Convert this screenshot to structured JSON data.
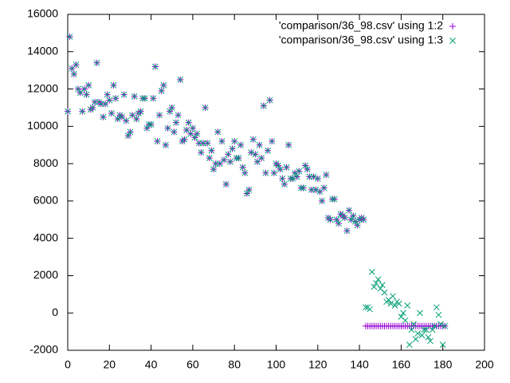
{
  "chart_data": {
    "type": "scatter",
    "x": [
      0,
      1,
      2,
      3,
      4,
      5,
      6,
      7,
      8,
      9,
      10,
      11,
      12,
      13,
      14,
      15,
      16,
      17,
      18,
      19,
      20,
      21,
      22,
      23,
      24,
      25,
      26,
      27,
      28,
      29,
      30,
      31,
      32,
      33,
      34,
      35,
      36,
      37,
      38,
      39,
      40,
      41,
      42,
      43,
      44,
      45,
      46,
      47,
      48,
      49,
      50,
      51,
      52,
      53,
      54,
      55,
      56,
      57,
      58,
      59,
      60,
      61,
      62,
      63,
      64,
      65,
      66,
      67,
      68,
      69,
      70,
      71,
      72,
      73,
      74,
      75,
      76,
      77,
      78,
      79,
      80,
      81,
      82,
      83,
      84,
      85,
      86,
      87,
      88,
      89,
      90,
      91,
      92,
      93,
      94,
      95,
      96,
      97,
      98,
      99,
      100,
      101,
      102,
      103,
      104,
      105,
      106,
      107,
      108,
      109,
      110,
      111,
      112,
      113,
      114,
      115,
      116,
      117,
      118,
      119,
      120,
      121,
      122,
      123,
      124,
      125,
      126,
      127,
      128,
      129,
      130,
      131,
      132,
      133,
      134,
      135,
      136,
      137,
      138,
      139,
      140,
      141,
      142,
      143,
      144,
      145,
      146,
      147,
      148,
      149,
      150,
      151,
      152,
      153,
      154,
      155,
      156,
      157,
      158,
      159,
      160,
      161,
      162,
      163,
      164,
      165,
      166,
      167,
      168,
      169,
      170,
      171,
      172,
      173,
      174,
      175,
      176,
      177,
      178,
      179,
      180,
      181
    ],
    "series": [
      {
        "name": "'comparison/36_98.csv' using 1:2",
        "color": "#9400d3",
        "marker": "plus",
        "values": [
          10800,
          14800,
          13100,
          12800,
          13300,
          12000,
          11800,
          10800,
          12000,
          11700,
          12200,
          10900,
          11000,
          11300,
          13400,
          11300,
          11200,
          10500,
          11200,
          11700,
          11400,
          10700,
          12200,
          11500,
          10400,
          10600,
          10500,
          11700,
          10300,
          9500,
          9700,
          10600,
          11600,
          10400,
          10700,
          10800,
          11500,
          11500,
          9900,
          10100,
          10100,
          11500,
          13200,
          9200,
          10600,
          11900,
          12200,
          9000,
          9900,
          10800,
          11000,
          9700,
          10200,
          10600,
          12500,
          9200,
          9300,
          9800,
          10200,
          9600,
          9900,
          9400,
          9600,
          9100,
          8600,
          9100,
          11000,
          9100,
          8300,
          8700,
          7700,
          8000,
          9700,
          8000,
          9200,
          8200,
          6900,
          8500,
          8100,
          8800,
          9200,
          8300,
          8300,
          9000,
          7800,
          7500,
          6400,
          6600,
          8600,
          9300,
          8500,
          8100,
          9000,
          8300,
          11100,
          7500,
          8700,
          11400,
          9200,
          7500,
          8000,
          7900,
          7700,
          7200,
          6900,
          7800,
          9000,
          7200,
          7200,
          7500,
          7300,
          7600,
          6700,
          6700,
          7900,
          7700,
          7300,
          6600,
          7300,
          6600,
          7200,
          6500,
          6000,
          6700,
          7400,
          5100,
          5000,
          6100,
          6100,
          5000,
          4800,
          5300,
          5200,
          5100,
          4400,
          5500,
          5000,
          5200,
          4900,
          4700,
          5000,
          5100,
          5000,
          -700,
          -700,
          -700,
          -700,
          -700,
          -700,
          -700,
          -700,
          -700,
          -700,
          -700,
          -700,
          -700,
          -700,
          -700,
          -700,
          -700,
          -700,
          -700,
          -700,
          -700,
          -700,
          -700,
          -700,
          -700,
          -700,
          -700,
          -700,
          -700,
          -700,
          -700,
          -700,
          -700,
          -700,
          -700,
          -700,
          -700,
          -700,
          -700
        ]
      },
      {
        "name": "'comparison/36_98.csv' using 1:3",
        "color": "#009e73",
        "marker": "cross",
        "values": [
          10800,
          14800,
          13100,
          12800,
          13300,
          12000,
          11800,
          10800,
          12000,
          11700,
          12200,
          10900,
          11000,
          11300,
          13400,
          11300,
          11200,
          10500,
          11200,
          11700,
          11400,
          10700,
          12200,
          11500,
          10400,
          10600,
          10500,
          11700,
          10300,
          9500,
          9700,
          10600,
          11600,
          10400,
          10700,
          10800,
          11500,
          11500,
          9900,
          10100,
          10100,
          11500,
          13200,
          9200,
          10600,
          11900,
          12200,
          9000,
          9900,
          10800,
          11000,
          9700,
          10200,
          10600,
          12500,
          9200,
          9300,
          9800,
          10200,
          9600,
          9900,
          9400,
          9600,
          9100,
          8600,
          9100,
          11000,
          9100,
          8300,
          8700,
          7700,
          8000,
          9700,
          8000,
          9200,
          8200,
          6900,
          8500,
          8100,
          8800,
          9200,
          8300,
          8300,
          9000,
          7800,
          7500,
          6400,
          6600,
          8600,
          9300,
          8500,
          8100,
          9000,
          8300,
          11100,
          7500,
          8700,
          11400,
          9200,
          7500,
          8000,
          7900,
          7700,
          7200,
          6900,
          7800,
          9000,
          7200,
          7200,
          7500,
          7300,
          7600,
          6700,
          6700,
          7900,
          7700,
          7300,
          6600,
          7300,
          6600,
          7200,
          6500,
          6000,
          6700,
          7400,
          5100,
          5000,
          6100,
          6100,
          5000,
          4800,
          5300,
          5200,
          5100,
          4400,
          5500,
          5000,
          5200,
          4900,
          4700,
          5000,
          5100,
          5000,
          300,
          300,
          200,
          2200,
          1400,
          1600,
          1800,
          1300,
          1500,
          1100,
          600,
          700,
          500,
          900,
          400,
          600,
          500,
          -200,
          0,
          -400,
          400,
          -1700,
          -900,
          -600,
          -1400,
          -1100,
          0,
          -1200,
          -900,
          -900,
          -1300,
          -1500,
          -900,
          -700,
          300,
          -100,
          -600,
          -1700,
          -700
        ]
      }
    ],
    "xlim": [
      0,
      200
    ],
    "xticks": [
      0,
      20,
      40,
      60,
      80,
      100,
      120,
      140,
      160,
      180,
      200
    ],
    "ylim": [
      -2000,
      16000
    ],
    "yticks": [
      -2000,
      0,
      2000,
      4000,
      6000,
      8000,
      10000,
      12000,
      14000,
      16000
    ],
    "grid": false,
    "legend_position": "top-right"
  }
}
